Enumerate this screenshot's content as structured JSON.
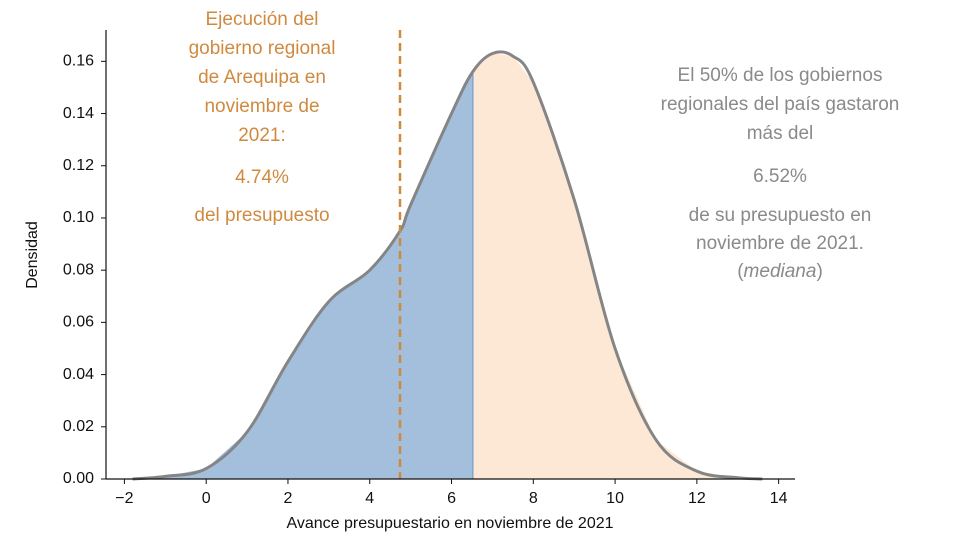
{
  "chart_data": {
    "type": "density",
    "x_label": "Avance presupuestario en noviembre de 2021",
    "y_label": "Densidad",
    "x": [
      -1.8,
      -1,
      0,
      1,
      2,
      3,
      4,
      4.74,
      5,
      6,
      6.52,
      7,
      7.5,
      8,
      9,
      10,
      11,
      12,
      13,
      13.6
    ],
    "values": [
      0.0,
      0.001,
      0.004,
      0.018,
      0.045,
      0.068,
      0.08,
      0.095,
      0.105,
      0.14,
      0.156,
      0.163,
      0.162,
      0.152,
      0.107,
      0.05,
      0.015,
      0.003,
      0.0005,
      0.0
    ],
    "line_color": "#858585",
    "fill_colors": [
      "#a3bfdb",
      "#fde8d6"
    ],
    "split_x": 6.52,
    "marker_x": 4.74,
    "marker_color": "#d08a3f",
    "xlim": [
      -2.45,
      14.4
    ],
    "ylim": [
      0,
      0.172
    ],
    "xticks": [
      {
        "value": -2,
        "label": "−2"
      },
      0,
      2,
      4,
      6,
      8,
      10,
      12,
      14
    ],
    "yticks": [
      {
        "value": 0,
        "label": "0.00"
      },
      0.02,
      0.04,
      0.06,
      0.08,
      {
        "value": 0.1,
        "label": "0.10"
      },
      0.12,
      0.14,
      0.16
    ],
    "annotations": [
      {
        "lines": [
          "Ejecución del",
          "gobierno regional",
          "de Arequipa en",
          "noviembre de",
          "2021:"
        ],
        "highlight": "4.74%",
        "after": [
          "del presupuesto"
        ]
      },
      {
        "lines": [
          "El 50% de los gobiernos",
          "regionales del país gastaron",
          "más del"
        ],
        "highlight": "6.52%",
        "after": [
          "de su presupuesto en",
          "noviembre de 2021."
        ],
        "note": {
          "open": "(",
          "italic": "mediana",
          "close": ")"
        }
      }
    ]
  }
}
